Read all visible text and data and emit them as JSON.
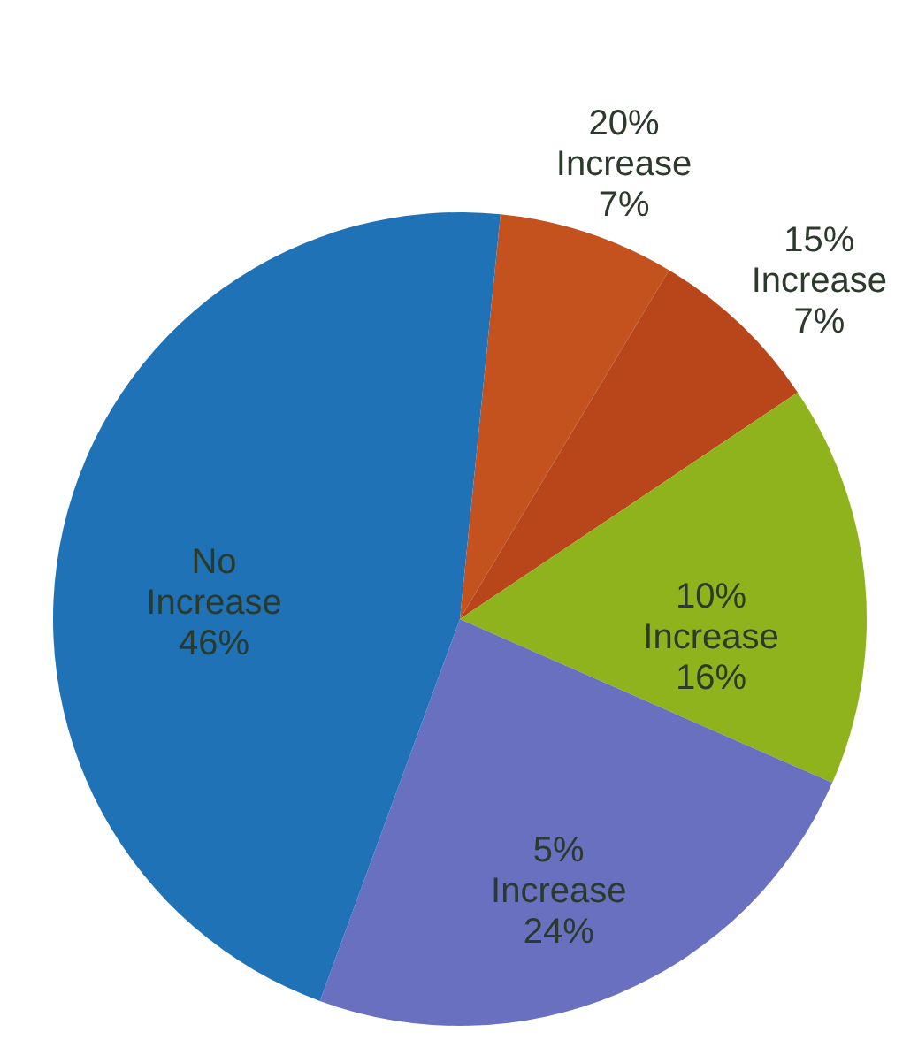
{
  "chart_data": {
    "type": "pie",
    "categories": [
      "20% Increase",
      "15% Increase",
      "10% Increase",
      "5% Increase",
      "No Increase"
    ],
    "values": [
      7,
      7,
      16,
      24,
      46
    ],
    "colors": [
      "#c4521e",
      "#b8461a",
      "#8fb31c",
      "#6a70c0",
      "#1f72b6"
    ],
    "value_labels": [
      "7%",
      "7%",
      "16%",
      "24%",
      "46%"
    ]
  }
}
